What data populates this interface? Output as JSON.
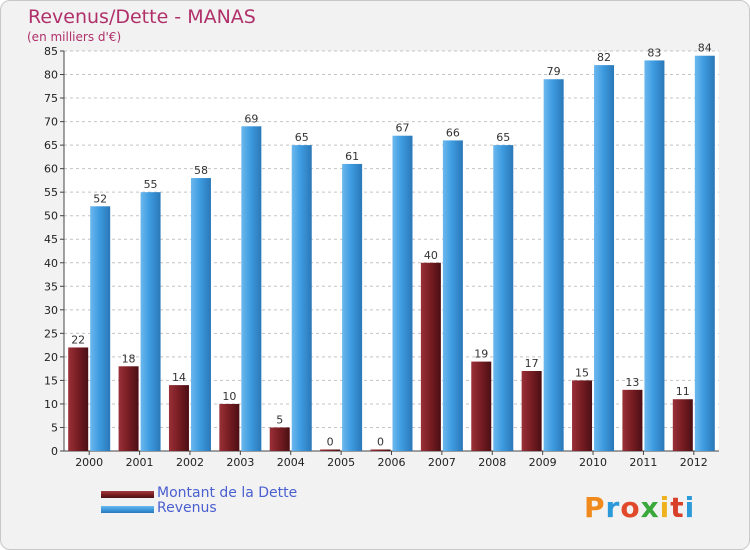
{
  "title": "Revenus/Dette - MANAS",
  "subtitle": "(en milliers d'€)",
  "logo": "Proxiti",
  "colors": {
    "debt": "#7a1e24",
    "revenue": "#3e9be0",
    "title": "#b0306a",
    "legend_text": "#4a5fd0"
  },
  "chart_data": {
    "type": "bar",
    "title": "Revenus/Dette - MANAS",
    "subtitle": "(en milliers d'€)",
    "categories": [
      "2000",
      "2001",
      "2002",
      "2003",
      "2004",
      "2005",
      "2006",
      "2007",
      "2008",
      "2009",
      "2010",
      "2011",
      "2012"
    ],
    "series": [
      {
        "name": "Montant de la Dette",
        "values": [
          22,
          18,
          14,
          10,
          5,
          0,
          0,
          40,
          19,
          17,
          15,
          13,
          11
        ]
      },
      {
        "name": "Revenus",
        "values": [
          52,
          55,
          58,
          69,
          65,
          61,
          67,
          66,
          65,
          79,
          82,
          83,
          84
        ]
      }
    ],
    "ylim": [
      0,
      85
    ],
    "yticks": [
      0,
      5,
      10,
      15,
      20,
      25,
      30,
      35,
      40,
      45,
      50,
      55,
      60,
      65,
      70,
      75,
      80,
      85
    ],
    "grid": true,
    "legend_position": "bottom-left"
  }
}
